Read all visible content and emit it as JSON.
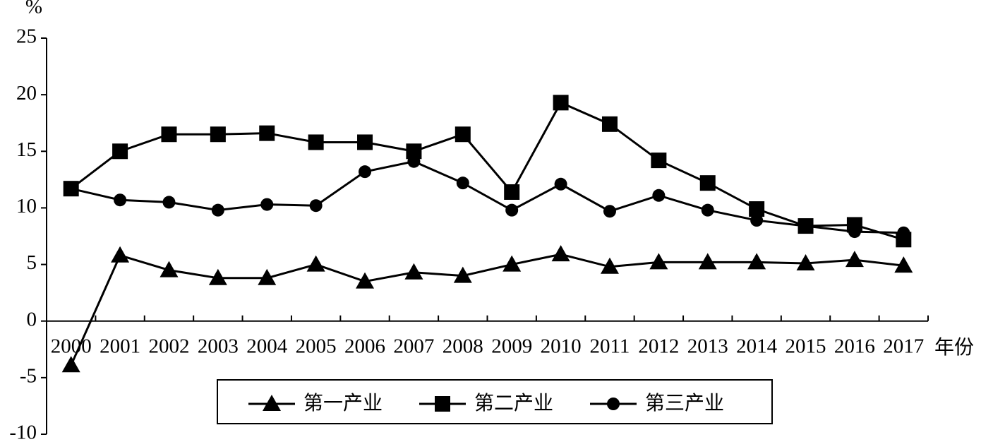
{
  "chart_data": {
    "type": "line",
    "ylabel": "%",
    "xlabel": "年份",
    "categories": [
      "2000",
      "2001",
      "2002",
      "2003",
      "2004",
      "2005",
      "2006",
      "2007",
      "2008",
      "2009",
      "2010",
      "2011",
      "2012",
      "2013",
      "2014",
      "2015",
      "2016",
      "2017"
    ],
    "series": [
      {
        "name": "第一产业",
        "color": "#000000",
        "marker": "triangle",
        "values": [
          -3.9,
          5.8,
          4.5,
          3.8,
          3.8,
          5.0,
          3.5,
          4.3,
          4.0,
          5.0,
          5.9,
          4.8,
          5.2,
          5.2,
          5.2,
          5.1,
          5.4,
          4.9
        ]
      },
      {
        "name": "第二产业",
        "color": "#000000",
        "marker": "square",
        "values": [
          11.7,
          15.0,
          16.5,
          16.5,
          16.6,
          15.8,
          15.8,
          15.0,
          16.5,
          11.4,
          19.3,
          17.4,
          14.2,
          12.2,
          9.9,
          8.4,
          8.5,
          7.2
        ]
      },
      {
        "name": "第三产业",
        "color": "#000000",
        "marker": "circle",
        "values": [
          11.7,
          10.7,
          10.5,
          9.8,
          10.3,
          10.2,
          13.2,
          14.1,
          12.2,
          9.8,
          12.1,
          9.7,
          11.1,
          9.8,
          8.9,
          8.4,
          7.9,
          7.8
        ]
      }
    ],
    "ylim": [
      -10,
      25
    ],
    "yticks": [
      -10,
      -5,
      0,
      5,
      10,
      15,
      20,
      25
    ]
  }
}
